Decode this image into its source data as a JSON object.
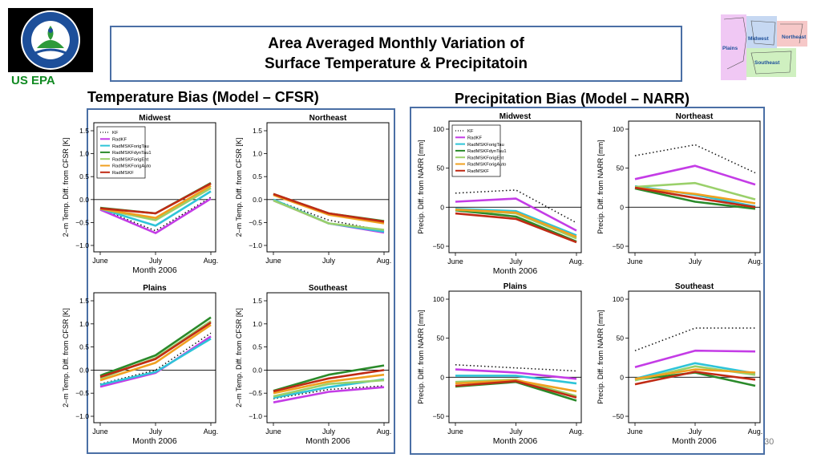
{
  "slide": {
    "title_line1": "Area Averaged Monthly Variation of",
    "title_line2": "Surface Temperature & Precipitatoin",
    "org_label": "US EPA",
    "page_number": "30",
    "logo_ring_text": "UNITED STATES ENVIRONMENTAL PROTECTION AGENCY",
    "map_labels": [
      "Midwest",
      "Northeast",
      "Plains",
      "Southeast"
    ]
  },
  "sections": {
    "temperature_title": "Temperature Bias (Model – CFSR)",
    "precipitation_title": "Precipitation Bias (Model – NARR)"
  },
  "colors": {
    "KF": "#111111",
    "RadKF": "#c43ce6",
    "RadMSKForigTau": "#2ec4d8",
    "RadMSKFdynTau1": "#2a8a2a",
    "RadMSKForigEnt": "#9ad06a",
    "RadMSKForigAuto": "#f0a020",
    "RadMSKF": "#c02a14",
    "frame": "#4a6fa5",
    "epa_green": "#118a22"
  },
  "chart_data": [
    {
      "type": "line",
      "title": "Midwest",
      "group": "temperature",
      "x": [
        "June",
        "July",
        "Aug."
      ],
      "xlabel": "Month 2006",
      "ylabel": "2–m Temp. Diff. from CFSR [K]",
      "ylim": [
        -1.0,
        1.5
      ],
      "yticks": [
        "−1.0",
        "−0.5",
        "0.0",
        "0.5",
        "1.0",
        "1.5"
      ],
      "legend": "top-left",
      "series": [
        {
          "name": "KF",
          "values": [
            -0.2,
            -0.68,
            0.05
          ]
        },
        {
          "name": "RadKF",
          "values": [
            -0.22,
            -0.73,
            0.02
          ]
        },
        {
          "name": "RadMSKForigTau",
          "values": [
            -0.2,
            -0.57,
            0.18
          ]
        },
        {
          "name": "RadMSKFdynTau1",
          "values": [
            -0.18,
            -0.3,
            0.36
          ]
        },
        {
          "name": "RadMSKForigEnt",
          "values": [
            -0.2,
            -0.45,
            0.25
          ]
        },
        {
          "name": "RadMSKForigAuto",
          "values": [
            -0.2,
            -0.4,
            0.3
          ]
        },
        {
          "name": "RadMSKF",
          "values": [
            -0.19,
            -0.3,
            0.35
          ]
        }
      ]
    },
    {
      "type": "line",
      "title": "Northeast",
      "group": "temperature",
      "x": [
        "June",
        "July",
        "Aug."
      ],
      "xlabel": "",
      "ylabel": "2–m Temp. Diff. from CFSR [K]",
      "ylim": [
        -1.0,
        1.5
      ],
      "yticks": [
        "−1.0",
        "−0.5",
        "0.0",
        "0.5",
        "1.0",
        "1.5"
      ],
      "series": [
        {
          "name": "KF",
          "values": [
            0.0,
            -0.45,
            -0.68
          ]
        },
        {
          "name": "RadKF",
          "values": [
            -0.02,
            -0.52,
            -0.72
          ]
        },
        {
          "name": "RadMSKForigTau",
          "values": [
            0.0,
            -0.52,
            -0.7
          ]
        },
        {
          "name": "RadMSKFdynTau1",
          "values": [
            0.12,
            -0.3,
            -0.47
          ]
        },
        {
          "name": "RadMSKForigEnt",
          "values": [
            -0.02,
            -0.52,
            -0.66
          ]
        },
        {
          "name": "RadMSKForigAuto",
          "values": [
            0.1,
            -0.33,
            -0.52
          ]
        },
        {
          "name": "RadMSKF",
          "values": [
            0.12,
            -0.3,
            -0.48
          ]
        }
      ]
    },
    {
      "type": "line",
      "title": "Plains",
      "group": "temperature",
      "x": [
        "June",
        "July",
        "Aug."
      ],
      "xlabel": "Month 2006",
      "ylabel": "2–m Temp. Diff. from CFSR [K]",
      "ylim": [
        -1.0,
        1.5
      ],
      "yticks": [
        "−1.0",
        "−0.5",
        "0.0",
        "0.5",
        "1.0",
        "1.5"
      ],
      "series": [
        {
          "name": "KF",
          "values": [
            -0.3,
            0.0,
            0.8
          ]
        },
        {
          "name": "RadKF",
          "values": [
            -0.36,
            -0.06,
            0.73
          ]
        },
        {
          "name": "RadMSKForigTau",
          "values": [
            -0.32,
            -0.04,
            0.68
          ]
        },
        {
          "name": "RadMSKFdynTau1",
          "values": [
            -0.12,
            0.32,
            1.14
          ]
        },
        {
          "name": "RadMSKForigEnt",
          "values": [
            -0.18,
            0.26,
            1.06
          ]
        },
        {
          "name": "RadMSKForigAuto",
          "values": [
            -0.22,
            0.16,
            0.98
          ]
        },
        {
          "name": "RadMSKF",
          "values": [
            -0.15,
            0.24,
            1.03
          ]
        }
      ]
    },
    {
      "type": "line",
      "title": "Southeast",
      "group": "temperature",
      "x": [
        "June",
        "July",
        "Aug."
      ],
      "xlabel": "Month 2006",
      "ylabel": "2–m Temp. Diff. from CFSR [K]",
      "ylim": [
        -1.0,
        1.5
      ],
      "yticks": [
        "−1.0",
        "−0.5",
        "0.0",
        "0.5",
        "1.0",
        "1.5"
      ],
      "series": [
        {
          "name": "KF",
          "values": [
            -0.62,
            -0.42,
            -0.34
          ]
        },
        {
          "name": "RadKF",
          "values": [
            -0.7,
            -0.47,
            -0.37
          ]
        },
        {
          "name": "RadMSKForigTau",
          "values": [
            -0.6,
            -0.37,
            -0.2
          ]
        },
        {
          "name": "RadMSKFdynTau1",
          "values": [
            -0.45,
            -0.1,
            0.1
          ]
        },
        {
          "name": "RadMSKForigEnt",
          "values": [
            -0.57,
            -0.3,
            -0.22
          ]
        },
        {
          "name": "RadMSKForigAuto",
          "values": [
            -0.5,
            -0.25,
            -0.1
          ]
        },
        {
          "name": "RadMSKF",
          "values": [
            -0.46,
            -0.18,
            0.0
          ]
        }
      ]
    },
    {
      "type": "line",
      "title": "Midwest",
      "group": "precipitation",
      "x": [
        "June",
        "July",
        "Aug."
      ],
      "xlabel": "Month 2006",
      "ylabel": "Precip. Diff. from NARR [mm]",
      "ylim": [
        -50,
        100
      ],
      "yticks": [
        "−50",
        "0",
        "50",
        "100"
      ],
      "legend": "top-left",
      "series": [
        {
          "name": "KF",
          "values": [
            18,
            22,
            -20
          ]
        },
        {
          "name": "RadKF",
          "values": [
            7,
            11,
            -30
          ]
        },
        {
          "name": "RadMSKForigTau",
          "values": [
            -2,
            -5,
            -36
          ]
        },
        {
          "name": "RadMSKFdynTau1",
          "values": [
            -4,
            -12,
            -44
          ]
        },
        {
          "name": "RadMSKForigEnt",
          "values": [
            -3,
            -8,
            -40
          ]
        },
        {
          "name": "RadMSKForigAuto",
          "values": [
            -3,
            -7,
            -38
          ]
        },
        {
          "name": "RadMSKF",
          "values": [
            -8,
            -15,
            -45
          ]
        }
      ]
    },
    {
      "type": "line",
      "title": "Northeast",
      "group": "precipitation",
      "x": [
        "June",
        "July",
        "Aug."
      ],
      "xlabel": "",
      "ylabel": "Precip. Diff. from NARR [mm]",
      "ylim": [
        -50,
        100
      ],
      "yticks": [
        "−50",
        "0",
        "50",
        "100"
      ],
      "series": [
        {
          "name": "KF",
          "values": [
            66,
            80,
            44
          ]
        },
        {
          "name": "RadKF",
          "values": [
            36,
            53,
            29
          ]
        },
        {
          "name": "RadMSKForigTau",
          "values": [
            27,
            16,
            1
          ]
        },
        {
          "name": "RadMSKFdynTau1",
          "values": [
            24,
            7,
            -2
          ]
        },
        {
          "name": "RadMSKForigEnt",
          "values": [
            26,
            31,
            10
          ]
        },
        {
          "name": "RadMSKForigAuto",
          "values": [
            25,
            17,
            5
          ]
        },
        {
          "name": "RadMSKF",
          "values": [
            25,
            12,
            0
          ]
        }
      ]
    },
    {
      "type": "line",
      "title": "Plains",
      "group": "precipitation",
      "x": [
        "June",
        "July",
        "Aug."
      ],
      "xlabel": "Month 2006",
      "ylabel": "Precip. Diff. from NARR [mm]",
      "ylim": [
        -50,
        100
      ],
      "yticks": [
        "−50",
        "0",
        "50",
        "100"
      ],
      "series": [
        {
          "name": "KF",
          "values": [
            16,
            12,
            8
          ]
        },
        {
          "name": "RadKF",
          "values": [
            10,
            6,
            -2
          ]
        },
        {
          "name": "RadMSKForigTau",
          "values": [
            2,
            2,
            -8
          ]
        },
        {
          "name": "RadMSKFdynTau1",
          "values": [
            -12,
            -6,
            -30
          ]
        },
        {
          "name": "RadMSKForigEnt",
          "values": [
            -6,
            -3,
            -24
          ]
        },
        {
          "name": "RadMSKForigAuto",
          "values": [
            -8,
            -4,
            -18
          ]
        },
        {
          "name": "RadMSKF",
          "values": [
            -11,
            -5,
            -26
          ]
        }
      ]
    },
    {
      "type": "line",
      "title": "Southeast",
      "group": "precipitation",
      "x": [
        "June",
        "July",
        "Aug."
      ],
      "xlabel": "Month 2006",
      "ylabel": "Precip. Diff. from NARR [mm]",
      "ylim": [
        -50,
        100
      ],
      "yticks": [
        "−50",
        "0",
        "50",
        "100"
      ],
      "series": [
        {
          "name": "KF",
          "values": [
            34,
            63,
            63
          ]
        },
        {
          "name": "RadKF",
          "values": [
            13,
            34,
            33
          ]
        },
        {
          "name": "RadMSKForigTau",
          "values": [
            -2,
            18,
            5
          ]
        },
        {
          "name": "RadMSKFdynTau1",
          "values": [
            -3,
            6,
            -11
          ]
        },
        {
          "name": "RadMSKForigEnt",
          "values": [
            -4,
            14,
            3
          ]
        },
        {
          "name": "RadMSKForigAuto",
          "values": [
            -2,
            10,
            6
          ]
        },
        {
          "name": "RadMSKF",
          "values": [
            -9,
            7,
            -3
          ]
        }
      ]
    }
  ]
}
